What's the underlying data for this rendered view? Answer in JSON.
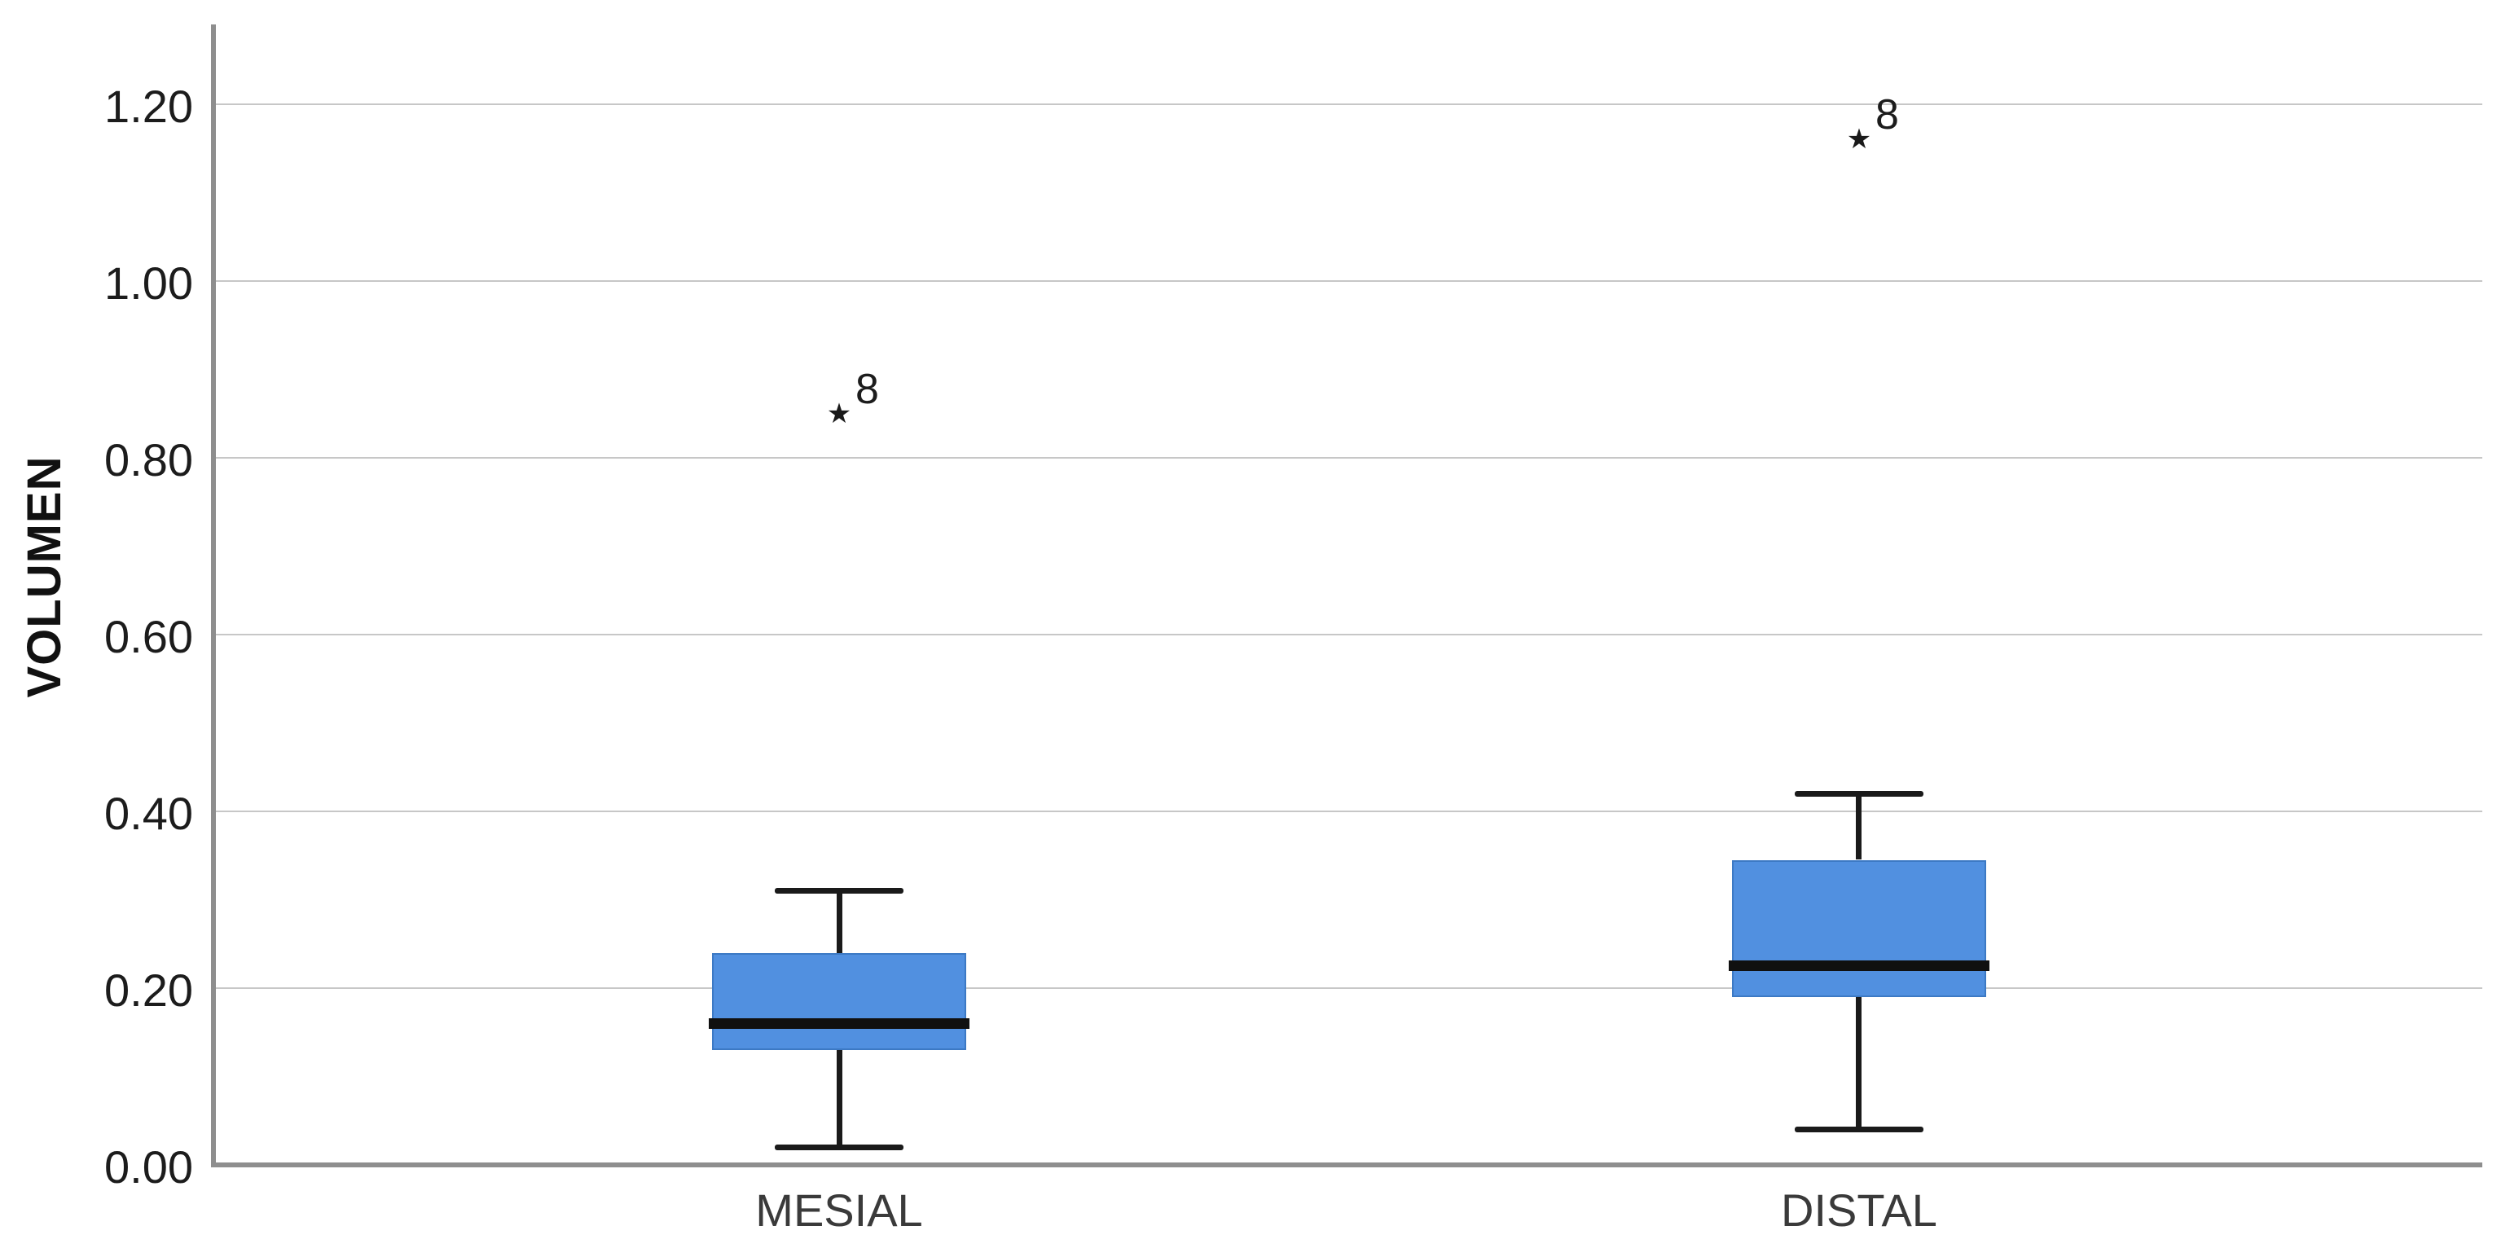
{
  "figure": {
    "background": "#ffffff"
  },
  "chart_data": {
    "type": "boxplot",
    "title": "",
    "ylabel": "VOLUMEN",
    "xlabel": "",
    "ylim": [
      0,
      1.29
    ],
    "yticks": [
      0,
      0.2,
      0.4,
      0.6,
      0.8,
      1.0,
      1.2
    ],
    "ytick_labels": [
      "0.00",
      "0.20",
      "0.40",
      "0.60",
      "0.80",
      "1.00",
      "1.20"
    ],
    "grid": true,
    "gridlines": "horizontal",
    "legend": false,
    "categories": [
      "MESIAL",
      "DISTAL"
    ],
    "series": [
      {
        "category": "MESIAL",
        "whisker_low": 0.02,
        "q1": 0.13,
        "median": 0.16,
        "q3": 0.24,
        "whisker_high": 0.31,
        "outliers": [
          {
            "value": 0.85,
            "label": "8",
            "marker": "star"
          }
        ]
      },
      {
        "category": "DISTAL",
        "whisker_low": 0.04,
        "q1": 0.19,
        "median": 0.225,
        "q3": 0.345,
        "whisker_high": 0.42,
        "outliers": [
          {
            "value": 1.16,
            "label": "8",
            "marker": "star"
          }
        ]
      }
    ],
    "marker_glyph": "★",
    "colors": {
      "box_fill": "#5190e0",
      "box_edge": "#3c79c4",
      "median": "#101010",
      "whisker": "#1a1a1a",
      "gridline": "#c7c7c7",
      "axis": "#8e8e8e",
      "tick_text": "#1c1c1c",
      "category_text": "#3a3a3a",
      "outlier_text": "#1c1c1c"
    }
  }
}
